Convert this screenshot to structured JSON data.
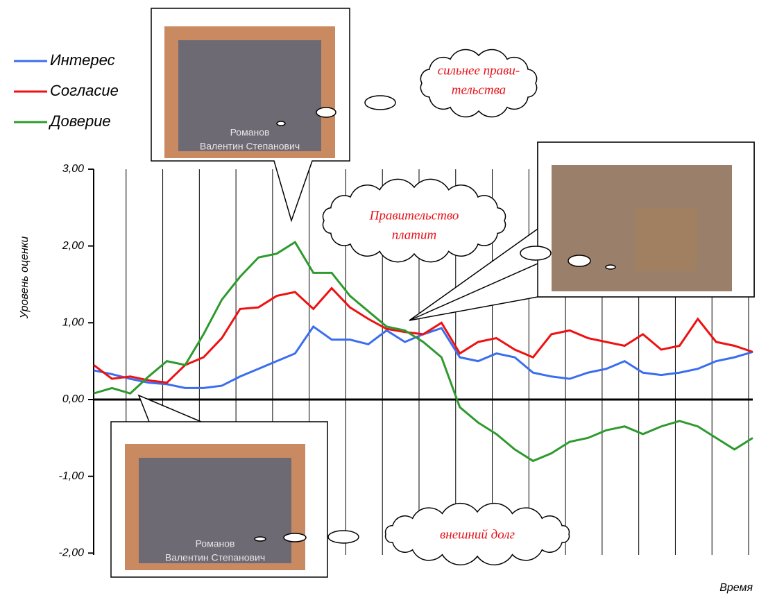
{
  "chart_data": {
    "type": "line",
    "y_label": "Уровень оценки",
    "x_label": "Время",
    "ylim": [
      -2.2,
      3.0
    ],
    "yticks": [
      {
        "value": -2,
        "label": "-2,00"
      },
      {
        "value": -1,
        "label": "-1,00"
      },
      {
        "value": 0,
        "label": "0,00"
      },
      {
        "value": 1,
        "label": "1,00"
      },
      {
        "value": 2,
        "label": "2,00"
      },
      {
        "value": 3,
        "label": "3,00"
      }
    ],
    "series": [
      {
        "name": "Интерес",
        "color": "#3a6df0",
        "values": [
          0.38,
          0.33,
          0.27,
          0.22,
          0.2,
          0.15,
          0.15,
          0.18,
          0.3,
          0.4,
          0.5,
          0.6,
          0.95,
          0.78,
          0.78,
          0.72,
          0.9,
          0.75,
          0.85,
          0.93,
          0.55,
          0.5,
          0.6,
          0.55,
          0.35,
          0.3,
          0.27,
          0.35,
          0.4,
          0.5,
          0.35,
          0.32,
          0.35,
          0.4,
          0.5,
          0.55,
          0.62
        ]
      },
      {
        "name": "Согласие",
        "color": "#ee1111",
        "values": [
          0.45,
          0.27,
          0.3,
          0.25,
          0.22,
          0.45,
          0.55,
          0.8,
          1.18,
          1.2,
          1.35,
          1.4,
          1.18,
          1.45,
          1.2,
          1.05,
          0.92,
          0.88,
          0.85,
          1.0,
          0.6,
          0.75,
          0.8,
          0.65,
          0.55,
          0.85,
          0.9,
          0.8,
          0.75,
          0.7,
          0.85,
          0.65,
          0.7,
          1.05,
          0.75,
          0.7,
          0.62
        ]
      },
      {
        "name": "Доверие",
        "color": "#2e9a2e",
        "values": [
          0.08,
          0.15,
          0.08,
          0.3,
          0.5,
          0.45,
          0.85,
          1.3,
          1.6,
          1.85,
          1.9,
          2.05,
          1.65,
          1.65,
          1.35,
          1.15,
          0.95,
          0.9,
          0.75,
          0.55,
          -0.1,
          -0.3,
          -0.45,
          -0.65,
          -0.8,
          -0.7,
          -0.55,
          -0.5,
          -0.4,
          -0.35,
          -0.45,
          -0.35,
          -0.28,
          -0.35,
          -0.5,
          -0.65,
          -0.5
        ]
      }
    ],
    "annotations": [
      "сильнее прави-",
      "тельства",
      "Правительство",
      "платит",
      "внешний долг"
    ],
    "frame_captions": [
      "Романов",
      "Валентин Степанович"
    ]
  }
}
